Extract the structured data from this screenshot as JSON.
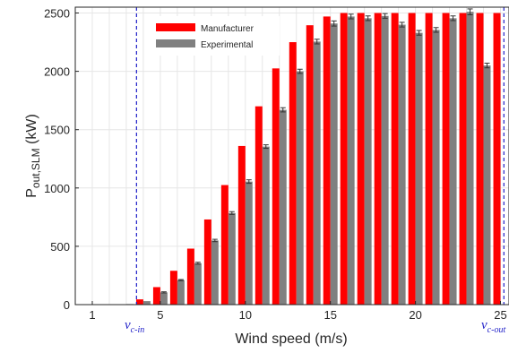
{
  "chart_data": {
    "type": "bar",
    "xlabel": "Wind speed (m/s)",
    "ylabel_main": "P",
    "ylabel_sub": "out,SLM",
    "ylabel_unit": " (kW)",
    "xlim": [
      0,
      25.5
    ],
    "ylim": [
      0,
      2550
    ],
    "x_ticks": [
      1,
      5,
      10,
      15,
      20,
      25
    ],
    "y_ticks": [
      0,
      500,
      1000,
      1500,
      2000,
      2500
    ],
    "grid": true,
    "legend_position": "top-left",
    "x": [
      1,
      2,
      3,
      4,
      5,
      6,
      7,
      8,
      9,
      10,
      11,
      12,
      13,
      14,
      15,
      16,
      17,
      18,
      19,
      20,
      21,
      22,
      23,
      24,
      25
    ],
    "series": [
      {
        "name": "Manufacturer",
        "color": "#ff0000",
        "values": [
          0,
          0,
          0,
          45,
          150,
          290,
          480,
          730,
          1025,
          1360,
          1700,
          2025,
          2250,
          2395,
          2470,
          2500,
          2500,
          2500,
          2500,
          2500,
          2500,
          2500,
          2500,
          2500,
          2500
        ],
        "error": [
          0,
          0,
          0,
          0,
          0,
          0,
          0,
          0,
          0,
          0,
          0,
          0,
          0,
          0,
          0,
          0,
          0,
          0,
          0,
          0,
          0,
          0,
          0,
          0,
          0
        ]
      },
      {
        "name": "Experimental",
        "color": "#808080",
        "values": [
          0,
          0,
          5,
          30,
          105,
          210,
          355,
          550,
          785,
          1055,
          1355,
          1670,
          2000,
          2255,
          2410,
          2470,
          2455,
          2475,
          2400,
          2330,
          2355,
          2455,
          2510,
          2050,
          0
        ],
        "error": [
          0,
          0,
          0,
          0,
          5,
          5,
          8,
          10,
          12,
          15,
          15,
          18,
          18,
          20,
          22,
          20,
          20,
          20,
          20,
          20,
          20,
          20,
          25,
          20,
          0
        ]
      }
    ],
    "annotations": [
      {
        "label": "v",
        "sub": "c-in",
        "x": 3.6,
        "color": "#1f1fc8"
      },
      {
        "label": "v",
        "sub": "c-out",
        "x": 25.2,
        "color": "#1f1fc8"
      }
    ]
  }
}
